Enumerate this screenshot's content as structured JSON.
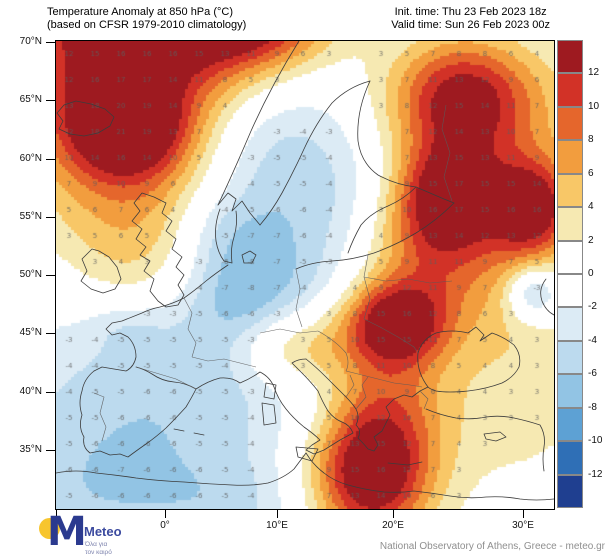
{
  "header": {
    "title_line1": "Temperature Anomaly at 850 hPa (°C)",
    "title_line2": "(based on CFSR 1979-2010 climatology)",
    "init_time": "Init. time: Thu 23 Feb 2023 18z",
    "valid_time": "Valid time: Sun 26 Feb 2023 00z"
  },
  "footer": {
    "attribution": "National Observatory of Athens, Greece - meteo.gr",
    "logo": {
      "brand": "Meteo",
      "tagline_line1": "Όλα για",
      "tagline_line2": "τον καιρό",
      "brand_color": "#2b3a8f",
      "sun_color": "#f7c52e"
    }
  },
  "map": {
    "lat_labels": [
      "70°N",
      "65°N",
      "60°N",
      "55°N",
      "50°N",
      "45°N",
      "40°N",
      "35°N"
    ],
    "lon_labels": [
      "0°",
      "10°E",
      "20°E",
      "30°E"
    ]
  },
  "colorbar": {
    "labels_top_to_bottom": [
      "12",
      "10",
      "8",
      "6",
      "4",
      "2",
      "0",
      "-2",
      "-4",
      "-6",
      "-8",
      "-10",
      "-12"
    ],
    "colors_top_to_bottom": [
      "#9e1a20",
      "#d23227",
      "#e5662c",
      "#f29d3e",
      "#f8c767",
      "#f6e9b2",
      "#ffffff",
      "#ffffff",
      "#dcebf5",
      "#bcdaee",
      "#92c4e4",
      "#5da1d4",
      "#2f6fb6",
      "#1f3f90"
    ]
  },
  "chart_data": {
    "type": "heatmap",
    "title": "Temperature Anomaly at 850 hPa (°C)",
    "subtitle": "(based on CFSR 1979-2010 climatology)",
    "init_time": "Thu 23 Feb 2023 18z",
    "valid_time": "Sun 26 Feb 2023 00z",
    "units": "°C",
    "region": "Europe",
    "lat_range_deg_n": [
      30,
      70
    ],
    "lon_tick_labels": [
      "0°",
      "10°E",
      "20°E",
      "30°E"
    ],
    "contour_levels": [
      -12,
      -10,
      -8,
      -6,
      -4,
      -2,
      0,
      2,
      4,
      6,
      8,
      10,
      12
    ],
    "features": [
      {
        "region": "North Atlantic / Iceland (top-left)",
        "anomaly_c": "+8 to +13"
      },
      {
        "region": "Northern Scandinavia top edge",
        "anomaly_c": "+5 to +10"
      },
      {
        "region": "NW Russia / Ukraine band (right)",
        "anomaly_c": "+6 to +13"
      },
      {
        "region": "Bulgaria - Aegean - Libya band",
        "anomaly_c": "+8 to +13"
      },
      {
        "region": "Northern Italy",
        "anomaly_c": "+3 to +5"
      },
      {
        "region": "British Isles, France, Germany, North Sea",
        "anomaly_c": "-3 to -8"
      },
      {
        "region": "Iberia and NW Africa",
        "anomaly_c": "-3 to -5"
      },
      {
        "region": "Scandinavia and Baltic",
        "anomaly_c": "-3 to -6"
      },
      {
        "region": "Small cold pocket far east near 50N",
        "anomaly_c": "-5 to -8"
      }
    ],
    "field_blobs": [
      {
        "cx": 0.17,
        "cy": -0.07,
        "sx": 0.21,
        "sy": 0.15,
        "a": 13.5
      },
      {
        "cx": 0.4,
        "cy": -0.05,
        "sx": 0.11,
        "sy": 0.08,
        "a": 10
      },
      {
        "cx": 0.141,
        "cy": 0.186,
        "sx": 0.085,
        "sy": 0.075,
        "a": 11.5
      },
      {
        "cx": 0.13,
        "cy": 0.24,
        "sx": 0.17,
        "sy": 0.2,
        "a": 7.5
      },
      {
        "cx": 0.18,
        "cy": 0.47,
        "sx": 0.11,
        "sy": 0.13,
        "a": 4.5
      },
      {
        "cx": 0.813,
        "cy": 0.118,
        "sx": 0.1,
        "sy": 0.09,
        "a": 10.5
      },
      {
        "cx": 0.787,
        "cy": 0.327,
        "sx": 0.075,
        "sy": 0.08,
        "a": 12.5
      },
      {
        "cx": 0.958,
        "cy": 0.357,
        "sx": 0.06,
        "sy": 0.075,
        "a": 12.5
      },
      {
        "cx": 0.679,
        "cy": 0.603,
        "sx": 0.075,
        "sy": 0.065,
        "a": 13.5
      },
      {
        "cx": 0.628,
        "cy": 0.936,
        "sx": 0.085,
        "sy": 0.1,
        "a": 13.5
      },
      {
        "cx": 0.74,
        "cy": 0.45,
        "sx": 0.1,
        "sy": 0.1,
        "a": 8
      },
      {
        "cx": 0.66,
        "cy": 0.78,
        "sx": 0.085,
        "sy": 0.12,
        "a": 7
      },
      {
        "cx": 0.833,
        "cy": 0.171,
        "sx": 0.2,
        "sy": 0.12,
        "a": 5
      },
      {
        "cx": 0.472,
        "cy": 0.652,
        "sx": 0.085,
        "sy": 0.06,
        "a": 7
      },
      {
        "cx": 0.904,
        "cy": 0.748,
        "sx": 0.15,
        "sy": 0.16,
        "a": 3.2
      },
      {
        "cx": 0.9,
        "cy": 0.5,
        "sx": 0.1,
        "sy": 0.12,
        "a": 3
      },
      {
        "cx": 0.371,
        "cy": 0.538,
        "sx": 0.085,
        "sy": 0.095,
        "a": -4.5
      },
      {
        "cx": 0.147,
        "cy": 0.609,
        "sx": 0.06,
        "sy": 0.045,
        "a": -2.5
      },
      {
        "cx": 0.29,
        "cy": 0.55,
        "sx": 0.27,
        "sy": 0.23,
        "a": -4.3
      },
      {
        "cx": 0.161,
        "cy": 0.8,
        "sx": 0.2,
        "sy": 0.15,
        "a": -3.5
      },
      {
        "cx": 0.552,
        "cy": 0.25,
        "sx": 0.17,
        "sy": 0.19,
        "a": -4.2
      },
      {
        "cx": 0.42,
        "cy": 0.2,
        "sx": 0.1,
        "sy": 0.13,
        "a": -2.5
      },
      {
        "cx": 0.96,
        "cy": 0.538,
        "sx": 0.038,
        "sy": 0.042,
        "a": -8
      },
      {
        "cx": 0.07,
        "cy": 0.98,
        "sx": 0.15,
        "sy": 0.1,
        "a": -3.5
      },
      {
        "cx": 0.35,
        "cy": 1.0,
        "sx": 0.12,
        "sy": 0.08,
        "a": -3
      },
      {
        "cx": 0.33,
        "cy": 0.4,
        "sx": 0.07,
        "sy": 0.06,
        "a": -2
      }
    ]
  }
}
